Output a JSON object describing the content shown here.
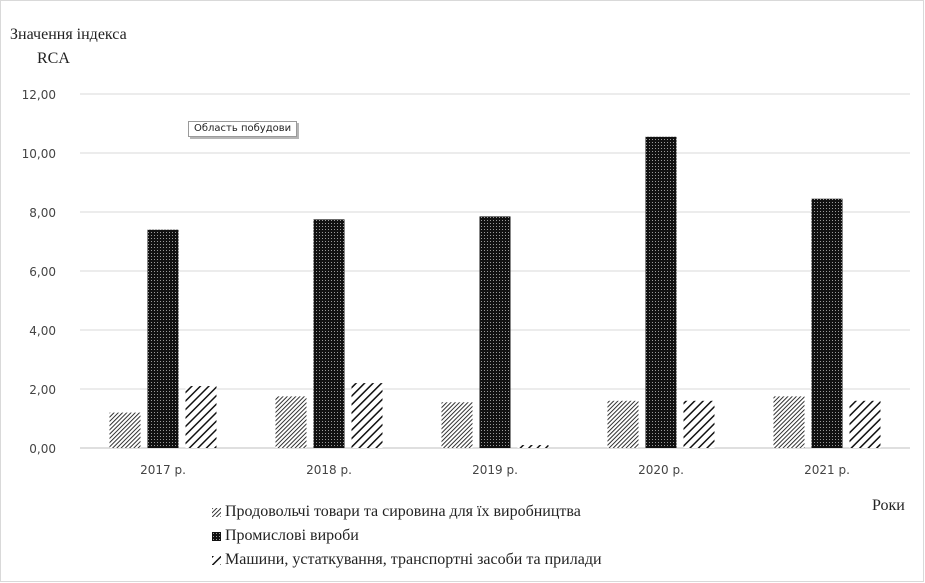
{
  "chart_data": {
    "type": "bar",
    "ylabel": "Значення індекса RCA",
    "ylabel_lines": [
      "Значення індекса",
      "RCA"
    ],
    "xlabel": "Роки",
    "categories": [
      "2017 р.",
      "2018 р.",
      "2019 р.",
      "2020 р.",
      "2021 р."
    ],
    "ylim": [
      0,
      12
    ],
    "yticks": [
      "0,00",
      "2,00",
      "4,00",
      "6,00",
      "8,00",
      "10,00",
      "12,00"
    ],
    "grid": true,
    "legend_position": "bottom",
    "series": [
      {
        "name": "Продовольчі товари та сировина для їх виробництва",
        "pattern": "diagonal-dense",
        "values": [
          1.2,
          1.75,
          1.55,
          1.6,
          1.75
        ]
      },
      {
        "name": "Промислові вироби",
        "pattern": "dotted-dark",
        "values": [
          7.4,
          7.75,
          7.85,
          10.55,
          8.45
        ]
      },
      {
        "name": "Машини, устаткування, транспортні засоби та  прилади",
        "pattern": "diagonal-wide",
        "values": [
          2.1,
          2.2,
          0.1,
          1.6,
          1.6
        ]
      }
    ]
  },
  "tooltip": {
    "text": "Область побудови"
  }
}
